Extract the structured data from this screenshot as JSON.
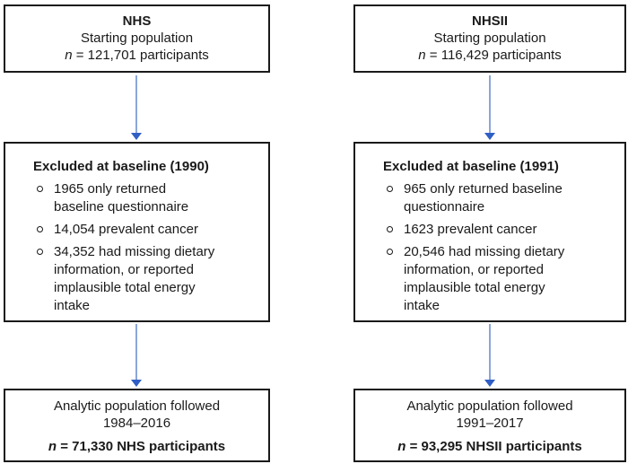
{
  "diagram": {
    "title_semantic": "Study population flow diagram",
    "colors": {
      "box_border": "#1a1a1a",
      "text": "#1a1a1a",
      "background": "#ffffff",
      "arrow_stem": "#8CA6DB",
      "arrow_head": "#2F5EC4"
    },
    "columns": [
      {
        "cohort": "NHS",
        "top_box": {
          "title": "NHS",
          "subtitle": "Starting population",
          "n_italic": "n",
          "n_rest": " = 121,701 participants"
        },
        "exclusion_box": {
          "heading": "Excluded at baseline (1990)",
          "bullets": [
            "1965 only returned\nbaseline questionnaire",
            "14,054 prevalent cancer",
            "34,352 had missing dietary\ninformation, or reported\nimplausible total energy\nintake"
          ]
        },
        "analytic_box": {
          "line1": "Analytic population followed",
          "line2": "1984–2016",
          "n_italic": "n",
          "n_rest": " = 71,330 NHS participants"
        }
      },
      {
        "cohort": "NHSII",
        "top_box": {
          "title": "NHSII",
          "subtitle": "Starting population",
          "n_italic": "n",
          "n_rest": " = 116,429 participants"
        },
        "exclusion_box": {
          "heading": "Excluded at baseline (1991)",
          "bullets": [
            "965 only returned baseline\nquestionnaire",
            "1623 prevalent cancer",
            "20,546 had missing dietary\ninformation, or reported\nimplausible total energy\nintake"
          ]
        },
        "analytic_box": {
          "line1": "Analytic population followed",
          "line2": "1991–2017",
          "n_italic": "n",
          "n_rest": " = 93,295 NHSII participants"
        }
      }
    ]
  }
}
